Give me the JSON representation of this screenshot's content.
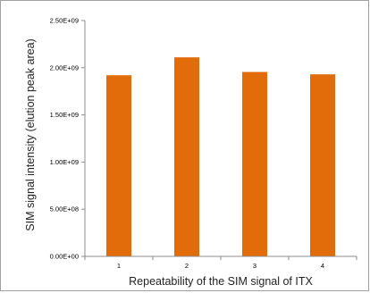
{
  "chart_data": {
    "type": "bar",
    "title": "",
    "xlabel": "Repeatability of the SIM signal of ITX",
    "ylabel": "SIM signal intensity (elution peak area)",
    "categories": [
      "1",
      "2",
      "3",
      "4"
    ],
    "values": [
      1920000000,
      2110000000,
      1955000000,
      1930000000
    ],
    "ylim": [
      0,
      2500000000
    ],
    "yticks": [
      0,
      500000000,
      1000000000,
      1500000000,
      2000000000,
      2500000000
    ],
    "ytick_labels": [
      "0.00E+00",
      "5.00E+08",
      "1.00E+09",
      "1.50E+09",
      "2.00E+09",
      "2.50E+09"
    ],
    "grid": false,
    "legend": "none",
    "bar_color": "#e36c0a"
  }
}
